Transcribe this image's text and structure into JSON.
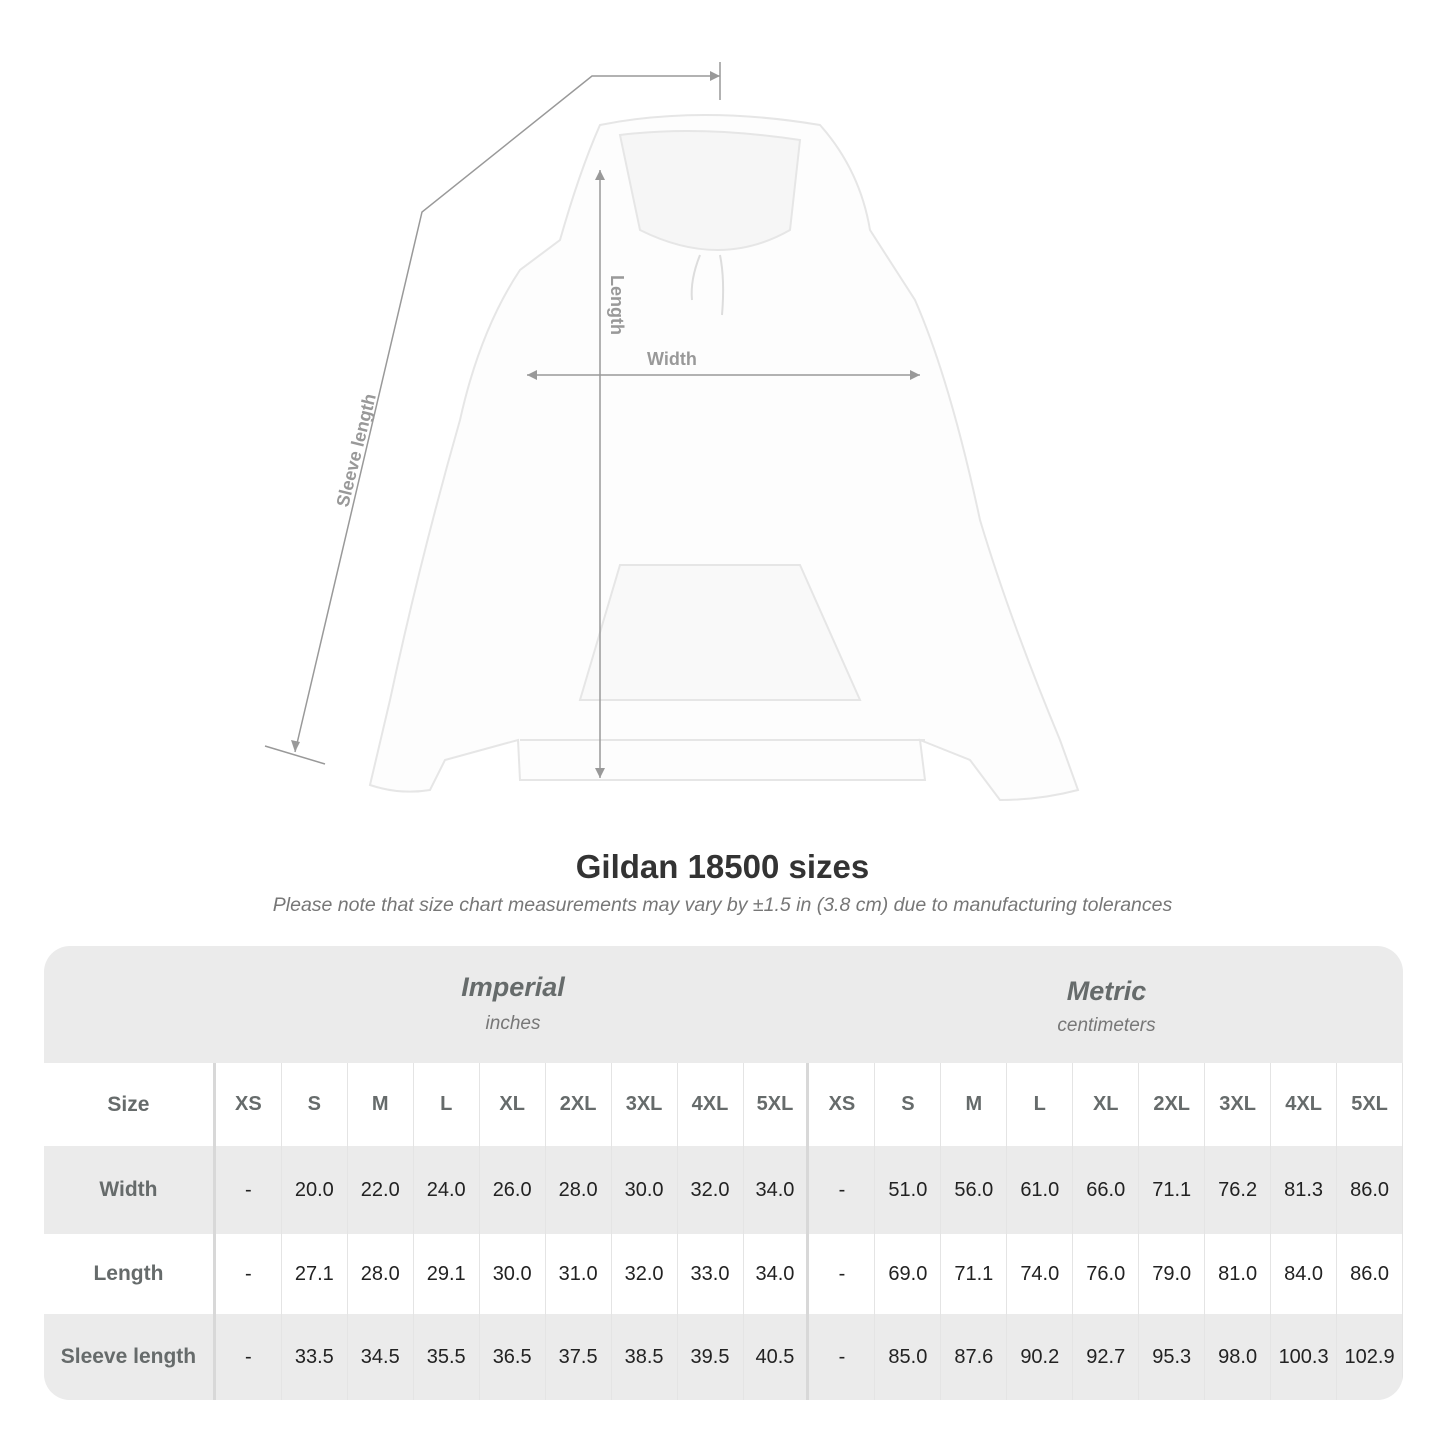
{
  "illustration": {
    "labels": {
      "sleeve": "Sleeve length",
      "length": "Length",
      "width": "Width"
    },
    "line_color": "#999999"
  },
  "title": "Gildan 18500 sizes",
  "subtitle": "Please note that size chart measurements may vary by ±1.5 in (3.8 cm) due to manufacturing tolerances",
  "table": {
    "imperial": {
      "label": "Imperial",
      "unit": "inches"
    },
    "metric": {
      "label": "Metric",
      "unit": "centimeters"
    },
    "size_label": "Size",
    "sizes": [
      "XS",
      "S",
      "M",
      "L",
      "XL",
      "2XL",
      "3XL",
      "4XL",
      "5XL"
    ],
    "rows": [
      {
        "label": "Width",
        "imperial": [
          "-",
          "20.0",
          "22.0",
          "24.0",
          "26.0",
          "28.0",
          "30.0",
          "32.0",
          "34.0"
        ],
        "metric": [
          "-",
          "51.0",
          "56.0",
          "61.0",
          "66.0",
          "71.1",
          "76.2",
          "81.3",
          "86.0"
        ]
      },
      {
        "label": "Length",
        "imperial": [
          "-",
          "27.1",
          "28.0",
          "29.1",
          "30.0",
          "31.0",
          "32.0",
          "33.0",
          "34.0"
        ],
        "metric": [
          "-",
          "69.0",
          "71.1",
          "74.0",
          "76.0",
          "79.0",
          "81.0",
          "84.0",
          "86.0"
        ]
      },
      {
        "label": "Sleeve length",
        "imperial": [
          "-",
          "33.5",
          "34.5",
          "35.5",
          "36.5",
          "37.5",
          "38.5",
          "39.5",
          "40.5"
        ],
        "metric": [
          "-",
          "85.0",
          "87.6",
          "90.2",
          "92.7",
          "95.3",
          "98.0",
          "100.3",
          "102.9"
        ]
      }
    ]
  }
}
